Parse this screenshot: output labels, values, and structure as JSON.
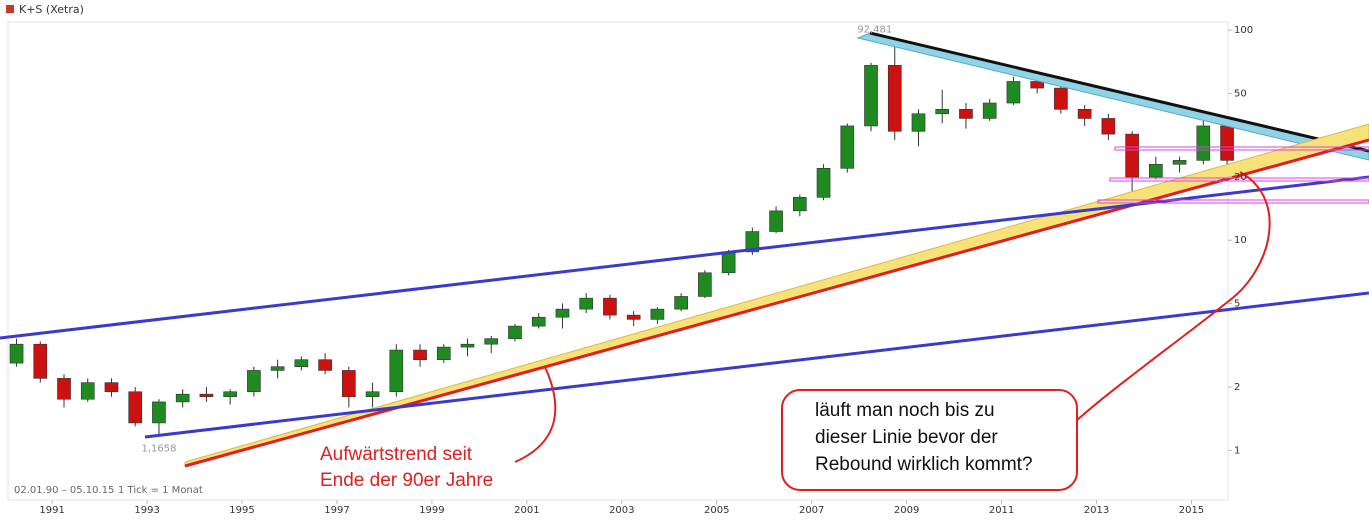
{
  "chart_data": {
    "type": "candlestick",
    "title": "K+S (Xetra)",
    "x": [
      1990.0,
      1990.5,
      1991.0,
      1991.5,
      1992.0,
      1992.5,
      1993.0,
      1993.5,
      1994.0,
      1994.5,
      1995.0,
      1995.5,
      1996.0,
      1996.5,
      1997.0,
      1997.5,
      1998.0,
      1998.5,
      1999.0,
      1999.5,
      2000.0,
      2000.5,
      2001.0,
      2001.5,
      2002.0,
      2002.5,
      2003.0,
      2003.5,
      2004.0,
      2004.5,
      2005.0,
      2005.5,
      2006.0,
      2006.5,
      2007.0,
      2007.5,
      2008.0,
      2008.5,
      2009.0,
      2009.5,
      2010.0,
      2010.5,
      2011.0,
      2011.5,
      2012.0,
      2012.5,
      2013.0,
      2013.5,
      2014.0,
      2014.5,
      2015.0,
      2015.5
    ],
    "open": [
      2.6,
      3.2,
      2.2,
      1.75,
      2.1,
      1.9,
      1.35,
      1.7,
      1.85,
      1.8,
      1.9,
      2.4,
      2.5,
      2.7,
      2.4,
      1.8,
      1.9,
      3.0,
      2.7,
      3.1,
      3.2,
      3.4,
      3.9,
      4.3,
      4.7,
      5.3,
      4.4,
      4.2,
      4.7,
      5.4,
      7.0,
      8.8,
      11.0,
      13.8,
      16,
      22,
      35,
      68,
      33,
      40,
      42,
      38,
      45,
      57,
      53,
      42,
      38,
      32,
      20,
      23,
      24,
      35
    ],
    "high": [
      3.4,
      3.3,
      2.3,
      2.2,
      2.2,
      2.0,
      1.75,
      1.95,
      2.0,
      1.95,
      2.5,
      2.7,
      2.8,
      2.9,
      2.5,
      2.1,
      3.2,
      3.2,
      3.2,
      3.4,
      3.5,
      4.0,
      4.5,
      5.0,
      5.6,
      5.5,
      4.6,
      4.8,
      5.6,
      7.2,
      9.0,
      11.5,
      14.5,
      16.5,
      23,
      36,
      70,
      92.481,
      42,
      52,
      45,
      47,
      60,
      60,
      56,
      44,
      40,
      33,
      25,
      25,
      38,
      37
    ],
    "low": [
      2.5,
      2.1,
      1.6,
      1.7,
      1.8,
      1.3,
      1.1658,
      1.6,
      1.7,
      1.65,
      1.8,
      2.2,
      2.4,
      2.3,
      1.6,
      1.6,
      1.8,
      2.5,
      2.6,
      2.8,
      2.9,
      3.3,
      3.8,
      3.8,
      4.5,
      4.2,
      3.9,
      4.0,
      4.6,
      5.3,
      6.8,
      8.5,
      10.8,
      13.0,
      15.5,
      21,
      33,
      30,
      28,
      36,
      34,
      37,
      44,
      50,
      40,
      35,
      30,
      17,
      19.5,
      21,
      23,
      22
    ],
    "close": [
      3.2,
      2.2,
      1.75,
      2.1,
      1.9,
      1.35,
      1.7,
      1.85,
      1.8,
      1.9,
      2.4,
      2.5,
      2.7,
      2.4,
      1.8,
      1.9,
      3.0,
      2.7,
      3.1,
      3.2,
      3.4,
      3.9,
      4.3,
      4.7,
      5.3,
      4.4,
      4.2,
      4.7,
      5.4,
      7.0,
      8.8,
      11.0,
      13.8,
      16.0,
      22,
      35,
      68,
      33,
      40,
      42,
      38,
      45,
      57,
      53,
      42,
      38,
      32,
      20,
      23,
      24,
      35,
      24
    ],
    "up_color": "#1f8a1f",
    "down_color": "#cc1111",
    "xlim": [
      1990.07,
      2015.77
    ],
    "xticks": [
      1991,
      1993,
      1995,
      1997,
      1999,
      2001,
      2003,
      2005,
      2007,
      2009,
      2011,
      2013,
      2015
    ],
    "ylim": [
      0.58,
      107
    ],
    "yticks": [
      1,
      2,
      5,
      10,
      20,
      50,
      100
    ],
    "log_scale": true,
    "max_label": {
      "value": 92.481,
      "label": "92,481"
    },
    "min_label": {
      "value": 1.1658,
      "label": "1,1658"
    },
    "footer": [
      "02.01.90 – 05.10.15",
      "1 Tick = 1 Monat"
    ],
    "annotations": [
      {
        "lines": [
          "Aufwärtstrend seit",
          "Ende der 90er Jahre"
        ]
      },
      {
        "lines": [
          "läuft man noch bis zu",
          "dieser Linie bevor der",
          "Rebound wirklich kommt?"
        ]
      }
    ]
  }
}
